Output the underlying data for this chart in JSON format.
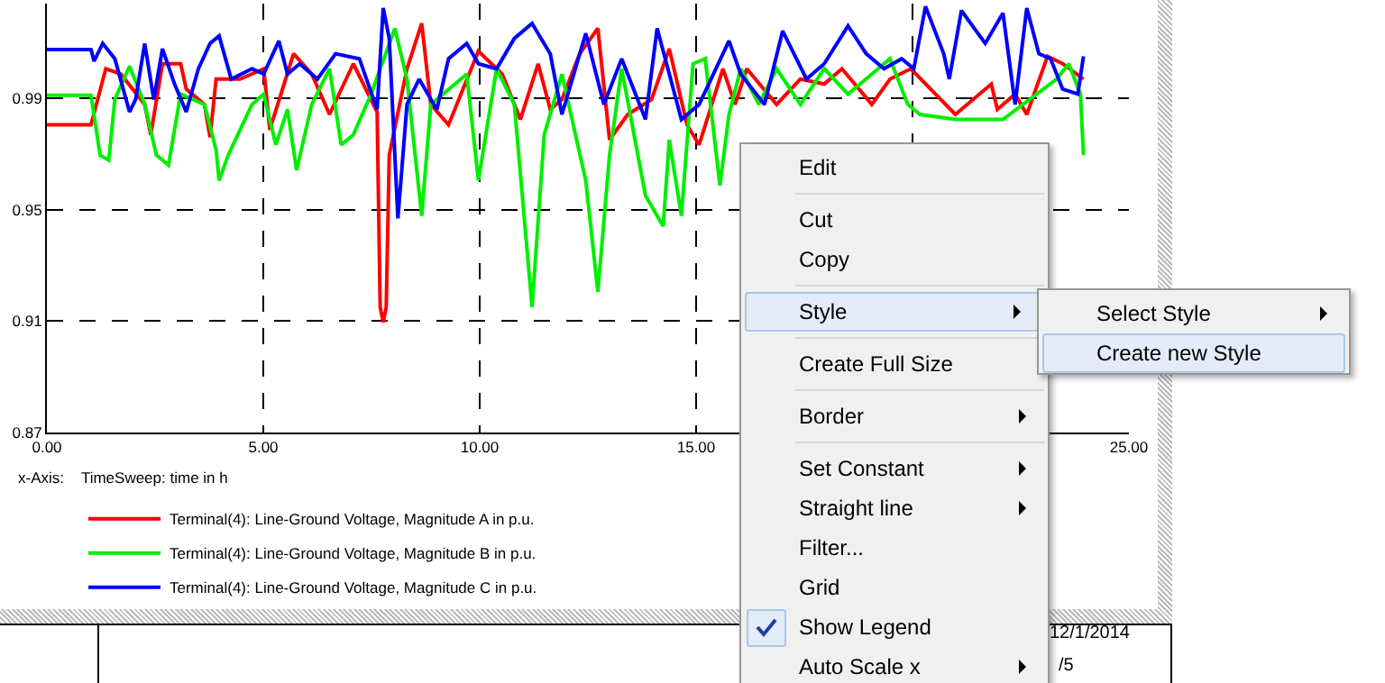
{
  "chart_data": {
    "type": "line",
    "xlabel": "x-Axis:    TimeSweep: time in h",
    "xlim": [
      0,
      25
    ],
    "xticks": [
      {
        "value": 0,
        "label": "0.00"
      },
      {
        "value": 5,
        "label": "5.00"
      },
      {
        "value": 10,
        "label": "10.00"
      },
      {
        "value": 15,
        "label": "15.00"
      },
      {
        "value": 20,
        "label": null
      },
      {
        "value": 25,
        "label": "25.00"
      }
    ],
    "ylim": [
      0.87,
      1.024
    ],
    "yticks": [
      {
        "value": 0.87,
        "label": "0.87"
      },
      {
        "value": 0.91,
        "label": "0.91"
      },
      {
        "value": 0.95,
        "label": "0.95"
      },
      {
        "value": 0.99,
        "label": "0.99"
      }
    ],
    "grid": true,
    "legend": "bottom left",
    "line_style": "solid",
    "marker": "none",
    "series": [
      {
        "name": "Terminal(4): Line-Ground Voltage, Magnitude A in p.u.",
        "color": "#ff0000",
        "x": [
          0,
          1.02,
          1.36,
          1.71,
          2.26,
          2.4,
          2.67,
          3.09,
          3.22,
          3.64,
          3.77,
          3.91,
          4.46,
          5.01,
          5.15,
          5.7,
          6.12,
          6.53,
          7.08,
          7.63,
          7.7,
          7.77,
          7.84,
          7.91,
          8.32,
          8.66,
          8.87,
          9.28,
          9.97,
          10.52,
          10.94,
          11.35,
          11.63,
          11.9,
          12.31,
          12.73,
          13.0,
          13.42,
          13.97,
          14.38,
          14.79,
          15.07,
          15.62,
          15.9,
          16.17,
          16.86,
          17.41,
          17.96,
          18.37,
          19.06,
          19.48,
          19.96,
          20.99,
          21.68,
          21.82,
          21.96,
          22.37,
          22.64,
          23.12,
          23.47,
          23.95
        ],
        "values": [
          0.9805,
          0.9805,
          1.0006,
          0.9987,
          0.9878,
          0.9769,
          1.0024,
          1.0024,
          0.9933,
          0.9878,
          0.976,
          0.9969,
          0.9969,
          1.0006,
          0.9787,
          1.006,
          0.9987,
          0.9842,
          1.0024,
          0.9851,
          0.915,
          0.9096,
          0.915,
          0.9696,
          1.0006,
          1.0169,
          0.9878,
          0.9805,
          1.0069,
          0.9987,
          0.9824,
          1.0024,
          0.986,
          0.9896,
          1.006,
          1.0151,
          0.9751,
          0.9842,
          0.9896,
          1.0078,
          0.9805,
          0.9733,
          1.0006,
          0.9878,
          1.0006,
          0.9878,
          0.9969,
          0.9951,
          1.0006,
          0.9878,
          0.9969,
          1.0006,
          0.9842,
          0.9933,
          0.9951,
          0.986,
          0.9915,
          0.9842,
          1.0051,
          1.0024,
          0.9969
        ]
      },
      {
        "name": "Terminal(4): Line-Ground Voltage, Magnitude B in p.u.",
        "color": "#00ee00",
        "x": [
          0,
          1.02,
          1.23,
          1.43,
          1.57,
          1.91,
          2.26,
          2.53,
          2.81,
          3.09,
          3.64,
          3.91,
          3.98,
          4.19,
          4.74,
          5.01,
          5.29,
          5.56,
          5.77,
          6.12,
          6.53,
          6.8,
          7.08,
          7.49,
          8.04,
          8.32,
          8.66,
          8.87,
          9.7,
          9.97,
          10.39,
          10.8,
          11.21,
          11.49,
          11.9,
          12.45,
          12.73,
          13.0,
          13.28,
          13.83,
          14.24,
          14.38,
          14.66,
          14.93,
          15.21,
          15.55,
          15.76,
          16.03,
          16.45,
          16.86,
          17.41,
          17.96,
          18.51,
          19.06,
          19.48,
          19.89,
          20.17,
          20.99,
          22.09,
          23.33,
          23.61,
          23.88,
          23.95
        ],
        "values": [
          0.9911,
          0.9911,
          0.9696,
          0.9678,
          0.9896,
          1.0015,
          0.9878,
          0.9696,
          0.966,
          0.9915,
          0.9878,
          0.9714,
          0.9605,
          0.9696,
          0.9878,
          0.9915,
          0.9733,
          0.986,
          0.9642,
          0.9878,
          1.0006,
          0.9733,
          0.9769,
          0.9915,
          1.0151,
          0.9969,
          0.9478,
          0.9878,
          0.9987,
          0.9605,
          1.0006,
          0.9878,
          0.915,
          0.9769,
          0.9987,
          0.9605,
          0.9205,
          0.9696,
          1.0006,
          0.9551,
          0.9441,
          0.9751,
          0.9478,
          1.0024,
          1.0042,
          0.9587,
          0.9842,
          1.0006,
          0.9878,
          1.0006,
          0.9878,
          1.0006,
          0.9915,
          0.9987,
          1.0042,
          0.9878,
          0.9842,
          0.9824,
          0.9824,
          0.9969,
          1.0024,
          0.9915,
          0.9696
        ]
      },
      {
        "name": "Terminal(4): Line-Ground Voltage, Magnitude C in p.u.",
        "color": "#0000ff",
        "x": [
          0,
          1.02,
          1.09,
          1.29,
          1.57,
          1.91,
          2.05,
          2.26,
          2.47,
          2.67,
          2.95,
          3.22,
          3.5,
          3.77,
          3.98,
          4.26,
          4.74,
          5.01,
          5.36,
          5.56,
          5.84,
          6.25,
          6.67,
          7.22,
          7.63,
          7.77,
          7.91,
          8.11,
          8.32,
          8.6,
          9.01,
          9.28,
          9.7,
          9.97,
          10.39,
          10.8,
          11.21,
          11.63,
          11.9,
          12.45,
          12.87,
          13.28,
          13.83,
          14.1,
          14.66,
          15.07,
          15.76,
          16.03,
          16.58,
          17.0,
          17.55,
          17.96,
          18.51,
          18.93,
          19.34,
          19.75,
          20.03,
          20.3,
          20.72,
          20.85,
          21.13,
          21.68,
          22.09,
          22.37,
          22.64,
          22.92,
          23.19,
          23.47,
          23.82,
          23.95
        ],
        "values": [
          1.0075,
          1.0075,
          1.0033,
          1.0097,
          1.0042,
          0.9851,
          0.9896,
          1.0097,
          0.9896,
          1.0078,
          0.9951,
          0.9851,
          1.0006,
          1.0097,
          1.0124,
          0.9969,
          1.0006,
          0.9987,
          1.0106,
          0.9987,
          1.0024,
          0.9969,
          1.006,
          1.0042,
          0.986,
          1.0224,
          1.0115,
          0.9469,
          0.9878,
          0.9969,
          0.986,
          1.0042,
          1.0097,
          1.0024,
          1.0006,
          1.0115,
          1.0169,
          1.006,
          0.9842,
          1.0133,
          0.9878,
          1.0042,
          0.9824,
          1.0151,
          0.9824,
          0.9878,
          1.0106,
          0.9987,
          0.9878,
          1.0142,
          0.9969,
          1.0024,
          1.016,
          1.006,
          1.0006,
          1.0042,
          1.0006,
          1.023,
          1.006,
          0.9969,
          1.0215,
          1.0097,
          1.0206,
          0.9878,
          1.0224,
          1.006,
          1.0042,
          0.9933,
          0.9915,
          1.0051
        ]
      }
    ],
    "annotations": [
      "12/1/2014",
      "/5",
      "Edit",
      "Cut",
      "Copy",
      "Style",
      "Create Full Size",
      "Border",
      "Set Constant",
      "Straight line",
      "Filter...",
      "Grid",
      "Show Legend",
      "Auto Scale x",
      "Select Style",
      "Create new Style"
    ]
  }
}
